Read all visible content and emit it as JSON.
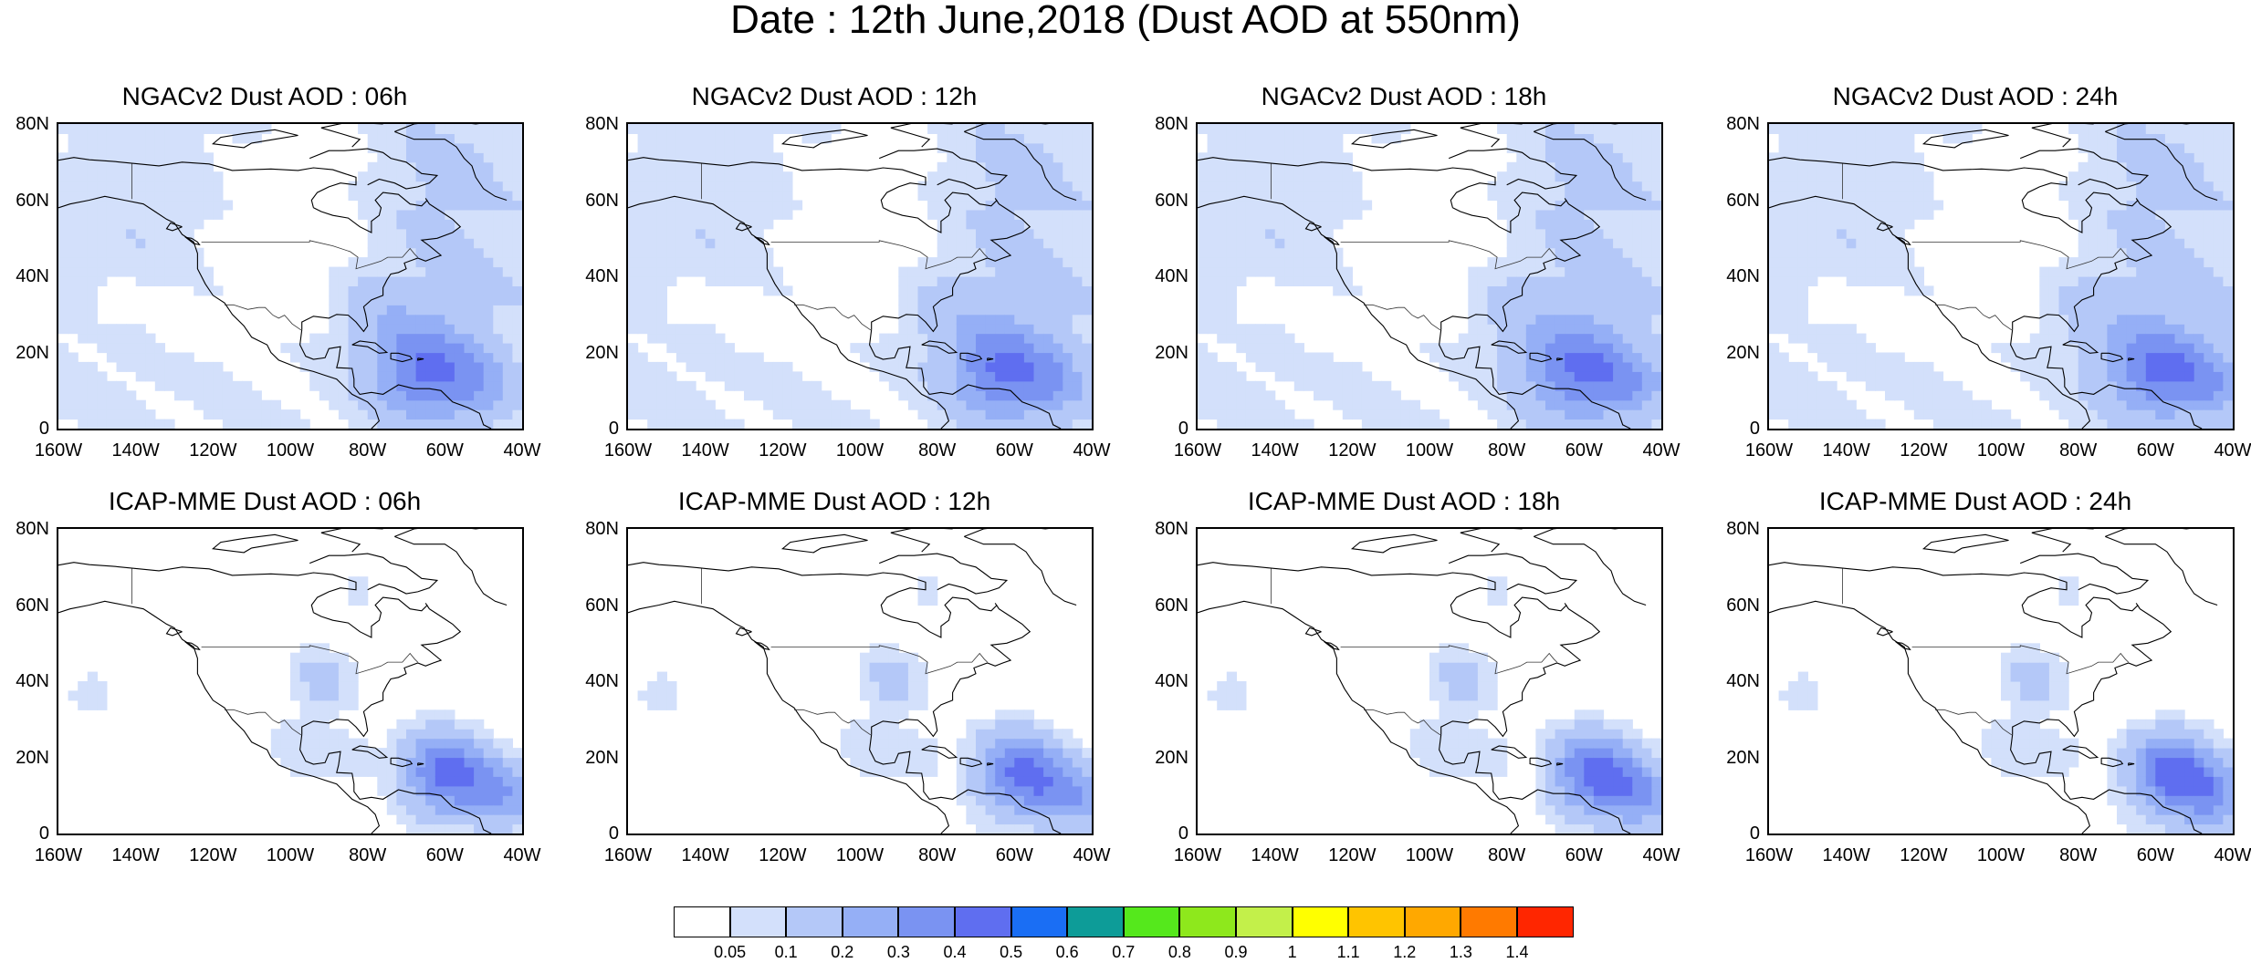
{
  "figure_title": "Date : 12th June,2018 (Dust AOD at 550nm)",
  "panels": [
    {
      "title": "NGACv2 Dust AOD : 06h"
    },
    {
      "title": "NGACv2 Dust AOD : 12h"
    },
    {
      "title": "NGACv2 Dust AOD : 18h"
    },
    {
      "title": "NGACv2 Dust AOD : 24h"
    },
    {
      "title": "ICAP-MME Dust AOD : 06h"
    },
    {
      "title": "ICAP-MME Dust AOD : 12h"
    },
    {
      "title": "ICAP-MME Dust AOD : 18h"
    },
    {
      "title": "ICAP-MME Dust AOD : 24h"
    }
  ],
  "axes": {
    "lat_ticks": [
      "80N",
      "60N",
      "40N",
      "20N",
      "0"
    ],
    "lon_ticks": [
      "160W",
      "140W",
      "120W",
      "100W",
      "80W",
      "60W",
      "40W"
    ],
    "lat_range": [
      0,
      80
    ],
    "lon_range": [
      -160,
      -40
    ]
  },
  "colorbar": {
    "labels": [
      "0.05",
      "0.1",
      "0.2",
      "0.3",
      "0.4",
      "0.5",
      "0.6",
      "0.7",
      "0.8",
      "0.9",
      "1",
      "1.1",
      "1.2",
      "1.3",
      "1.4"
    ],
    "colors": [
      "#ffffff",
      "#d3e0fb",
      "#b4c8f8",
      "#95aff6",
      "#7a93f2",
      "#5f6ef0",
      "#1a6ef4",
      "#0d9c98",
      "#55e81c",
      "#8ee81c",
      "#c3f04a",
      "#ffff00",
      "#ffc400",
      "#ffa800",
      "#ff7a00",
      "#ff2600"
    ]
  }
}
